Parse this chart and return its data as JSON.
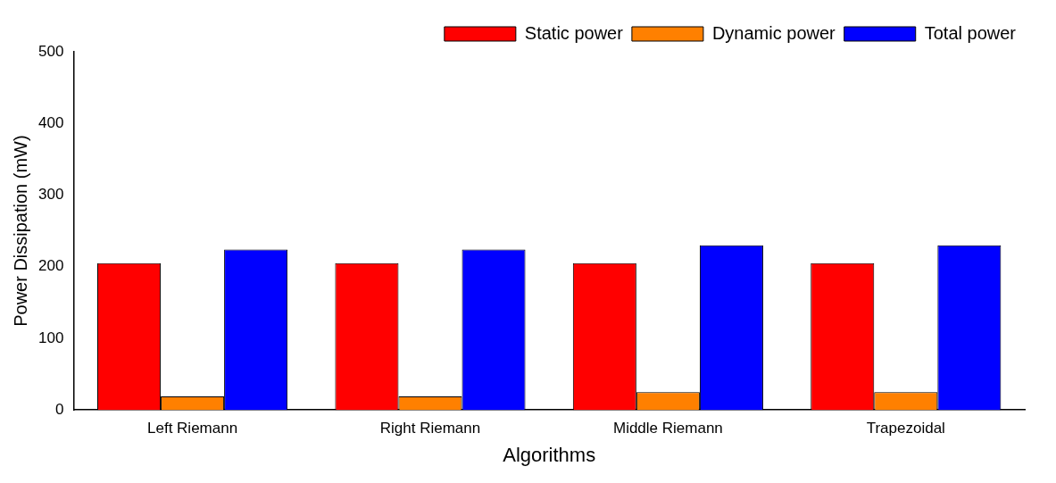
{
  "chart_data": {
    "type": "bar",
    "xlabel": "Algorithms",
    "ylabel": "Power Dissipation (mW)",
    "categories": [
      "Left Riemann",
      "Right Riemann",
      "Middle Riemann",
      "Trapezoidal"
    ],
    "series": [
      {
        "name": "Static power",
        "color": "#ff0000",
        "values": [
          205,
          205,
          205,
          205
        ]
      },
      {
        "name": "Dynamic power",
        "color": "#ff8000",
        "values": [
          19,
          19,
          25,
          25
        ]
      },
      {
        "name": "Total power",
        "color": "#0000ff",
        "values": [
          224,
          224,
          230,
          230
        ]
      }
    ],
    "ylim": [
      0,
      500
    ],
    "yticks": [
      0,
      100,
      200,
      300,
      400,
      500
    ],
    "grid": false,
    "legend": "top right"
  }
}
